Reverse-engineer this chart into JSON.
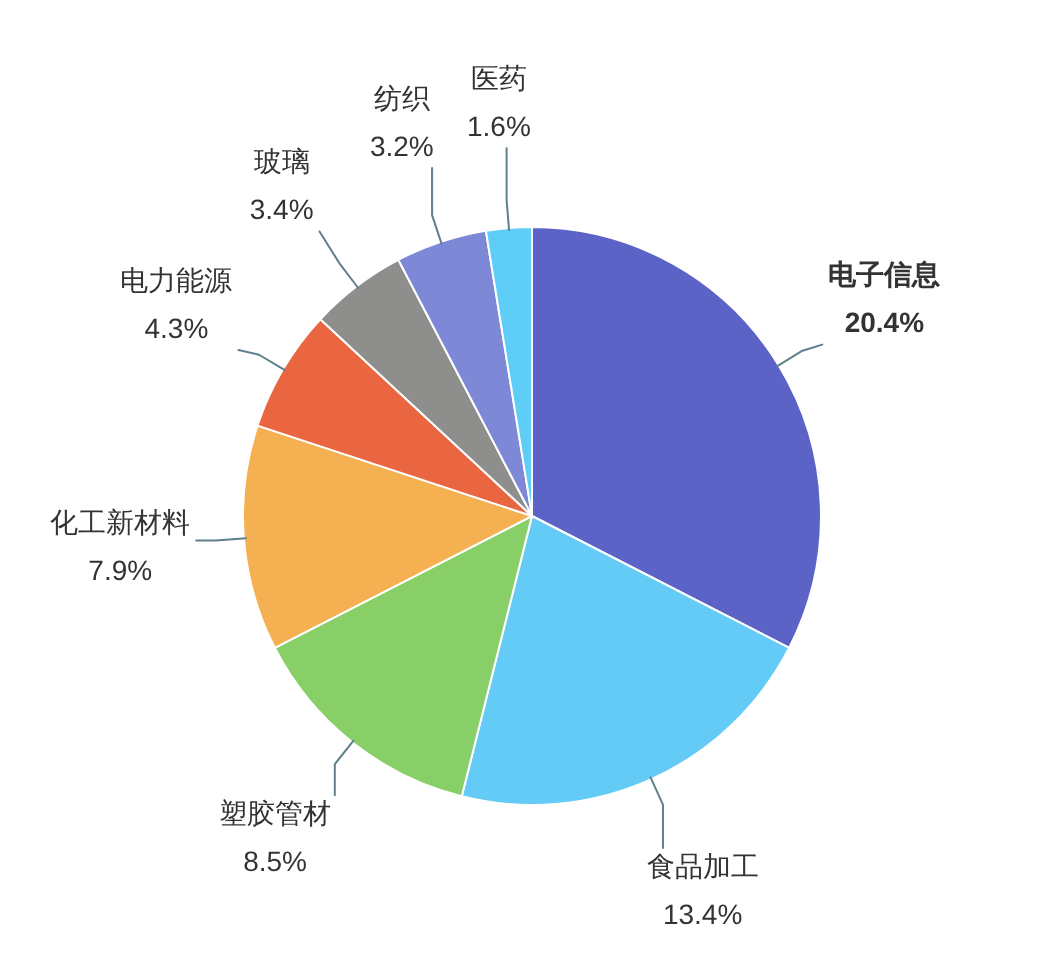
{
  "chart_data": {
    "type": "pie",
    "categories": [
      "电子信息",
      "食品加工",
      "塑胶管材",
      "化工新材料",
      "电力能源",
      "玻璃",
      "纺织",
      "医药"
    ],
    "values": [
      20.4,
      13.4,
      8.5,
      7.9,
      4.3,
      3.4,
      3.2,
      1.6
    ],
    "value_labels": [
      "20.4%",
      "13.4%",
      "8.5%",
      "7.9%",
      "4.3%",
      "3.4%",
      "3.2%",
      "1.6%"
    ],
    "colors": [
      "#5c63c6",
      "#63cbf5",
      "#88cf67",
      "#f5b052",
      "#ea6640",
      "#8e8e8c",
      "#7d89d6",
      "#5ecdf8"
    ]
  }
}
